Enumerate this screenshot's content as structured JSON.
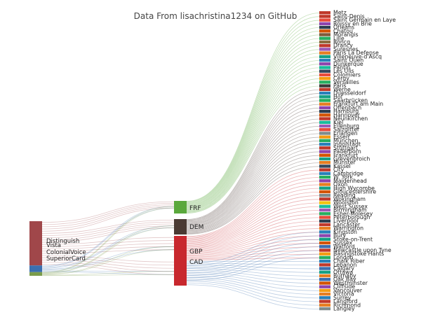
{
  "title": "Data From lisachristina1234 on GitHub",
  "sources": [
    {
      "name": "Distinguish",
      "color": "#a0474a",
      "weight": 60
    },
    {
      "name": "Vista",
      "color": "#a0474a",
      "weight": 0
    },
    {
      "name": "ColonialVoice",
      "color": "#3b6fb0",
      "weight": 9
    },
    {
      "name": "SuperiorCard",
      "color": "#7a9c4a",
      "weight": 5
    }
  ],
  "currencies": [
    {
      "name": "FRF",
      "color": "#5aa83c",
      "weight": 12
    },
    {
      "name": "DEM",
      "color": "#4a3a33",
      "weight": 13
    },
    {
      "name": "GBP",
      "color": "#c8282e",
      "weight": 30
    },
    {
      "name": "CAD",
      "color": "#c8282e",
      "weight": 45
    }
  ],
  "cities": [
    {
      "name": "Metz",
      "color": "#c0392b",
      "group": "FRF"
    },
    {
      "name": "Saint-Denis",
      "color": "#c0392b",
      "group": "FRF"
    },
    {
      "name": "Saint Germain en Laye",
      "color": "#e74c3c",
      "group": "FRF"
    },
    {
      "name": "Roissy en Brie",
      "color": "#8e44ad",
      "group": "FRF"
    },
    {
      "name": "Orleans",
      "color": "#2c3e50",
      "group": "FRF"
    },
    {
      "name": "Chatou",
      "color": "#d35400",
      "group": "FRF"
    },
    {
      "name": "Morangis",
      "color": "#7f5a3a",
      "group": "FRF"
    },
    {
      "name": "Lille",
      "color": "#27ae60",
      "group": "FRF"
    },
    {
      "name": "Roncq",
      "color": "#8c6d3f",
      "group": "FRF"
    },
    {
      "name": "Drancy",
      "color": "#c0392b",
      "group": "FRF"
    },
    {
      "name": "Suresnes",
      "color": "#9b59b6",
      "group": "FRF"
    },
    {
      "name": "Paris La Defense",
      "color": "#e67e22",
      "group": "FRF"
    },
    {
      "name": "Villeneuve-d'Ascq",
      "color": "#16a085",
      "group": "FRF"
    },
    {
      "name": "Saint Ouen",
      "color": "#2980b9",
      "group": "FRF"
    },
    {
      "name": "Dunkerque",
      "color": "#8e44ad",
      "group": "FRF"
    },
    {
      "name": "Pantin",
      "color": "#1abc9c",
      "group": "FRF"
    },
    {
      "name": "Les Ulis",
      "color": "#34495e",
      "group": "FRF"
    },
    {
      "name": "Colomiers",
      "color": "#e74c3c",
      "group": "FRF"
    },
    {
      "name": "Cergy",
      "color": "#f39c12",
      "group": "FRF"
    },
    {
      "name": "Versailles",
      "color": "#27ae60",
      "group": "FRF"
    },
    {
      "name": "Paris",
      "color": "#3a3a3a",
      "group": "FRF"
    },
    {
      "name": "Werne",
      "color": "#c0392b",
      "group": "DEM"
    },
    {
      "name": "Duesseldorf",
      "color": "#2980b9",
      "group": "DEM"
    },
    {
      "name": "Hof",
      "color": "#16a085",
      "group": "DEM"
    },
    {
      "name": "Saarbrücken",
      "color": "#27ae60",
      "group": "DEM"
    },
    {
      "name": "Frankfurt am Main",
      "color": "#e67e22",
      "group": "DEM"
    },
    {
      "name": "Offenbach",
      "color": "#8e44ad",
      "group": "DEM"
    },
    {
      "name": "Hamburg",
      "color": "#2c3e50",
      "group": "DEM"
    },
    {
      "name": "Hannover",
      "color": "#d35400",
      "group": "DEM"
    },
    {
      "name": "Neunkirchen",
      "color": "#c0392b",
      "group": "DEM"
    },
    {
      "name": "Kiel",
      "color": "#1abc9c",
      "group": "DEM"
    },
    {
      "name": "Eilenburg",
      "color": "#9b59b6",
      "group": "DEM"
    },
    {
      "name": "Salzgitter",
      "color": "#e74c3c",
      "group": "DEM"
    },
    {
      "name": "Erlangen",
      "color": "#7f8c8d",
      "group": "DEM"
    },
    {
      "name": "Essen",
      "color": "#f39c12",
      "group": "DEM"
    },
    {
      "name": "München",
      "color": "#27ae60",
      "group": "DEM"
    },
    {
      "name": "Ingolstadt",
      "color": "#2980b9",
      "group": "DEM"
    },
    {
      "name": "Stuttgart",
      "color": "#c0392b",
      "group": "DEM"
    },
    {
      "name": "Paderborn",
      "color": "#8e44ad",
      "group": "DEM"
    },
    {
      "name": "Frankfurt",
      "color": "#d35400",
      "group": "DEM"
    },
    {
      "name": "Grevenbroich",
      "color": "#16a085",
      "group": "DEM"
    },
    {
      "name": "Münster",
      "color": "#e67e22",
      "group": "DEM"
    },
    {
      "name": "Kassel",
      "color": "#34495e",
      "group": "DEM"
    },
    {
      "name": "City",
      "color": "#c0392b",
      "group": "GBP"
    },
    {
      "name": "Cambridge",
      "color": "#2980b9",
      "group": "GBP"
    },
    {
      "name": "W. York",
      "color": "#27ae60",
      "group": "GBP"
    },
    {
      "name": "Maidenhead",
      "color": "#8e44ad",
      "group": "GBP"
    },
    {
      "name": "Oxon",
      "color": "#e67e22",
      "group": "GBP"
    },
    {
      "name": "High Wycombe",
      "color": "#16a085",
      "group": "GBP"
    },
    {
      "name": "Gloucestershire",
      "color": "#d35400",
      "group": "GBP"
    },
    {
      "name": "Reading",
      "color": "#7f8c8d",
      "group": "GBP"
    },
    {
      "name": "Wokingham",
      "color": "#c0392b",
      "group": "GBP"
    },
    {
      "name": "Woolston",
      "color": "#f1c40f",
      "group": "GBP"
    },
    {
      "name": "West Sussex",
      "color": "#1abc9c",
      "group": "GBP"
    },
    {
      "name": "Birmingham",
      "color": "#9b59b6",
      "group": "GBP"
    },
    {
      "name": "Esher-Molesey",
      "color": "#27ae60",
      "group": "GBP"
    },
    {
      "name": "Peterborough",
      "color": "#e74c3c",
      "group": "GBP"
    },
    {
      "name": "Liverpool",
      "color": "#2c3e50",
      "group": "GBP"
    },
    {
      "name": "Lancaster",
      "color": "#c0392b",
      "group": "GBP"
    },
    {
      "name": "Warrington",
      "color": "#e67e22",
      "group": "GBP"
    },
    {
      "name": "Kingston",
      "color": "#2980b9",
      "group": "GBP"
    },
    {
      "name": "Bury",
      "color": "#8e44ad",
      "group": "GBP"
    },
    {
      "name": "Stoke-on-Trent",
      "color": "#16a085",
      "group": "GBP"
    },
    {
      "name": "Sussex",
      "color": "#d35400",
      "group": "GBP"
    },
    {
      "name": "Watford",
      "color": "#3b6fb0",
      "group": "GBP"
    },
    {
      "name": "Newcastle upon Tyne",
      "color": "#c0392b",
      "group": "GBP"
    },
    {
      "name": "Basingstoke Hants",
      "color": "#f39c12",
      "group": "GBP"
    },
    {
      "name": "London",
      "color": "#27ae60",
      "group": "GBP"
    },
    {
      "name": "Chalk Riber",
      "color": "#2980b9",
      "group": "CAD"
    },
    {
      "name": "Lebanon",
      "color": "#c0392b",
      "group": "CAD"
    },
    {
      "name": "Calgary",
      "color": "#3b6fb0",
      "group": "CAD"
    },
    {
      "name": "Ottawa",
      "color": "#16a085",
      "group": "CAD"
    },
    {
      "name": "Burnaby",
      "color": "#e67e22",
      "group": "CAD"
    },
    {
      "name": "Oak Bay",
      "color": "#3b6fb0",
      "group": "CAD"
    },
    {
      "name": "Westminster",
      "color": "#d35400",
      "group": "CAD"
    },
    {
      "name": "Cliffside",
      "color": "#8e44ad",
      "group": "CAD"
    },
    {
      "name": "Vancouver",
      "color": "#f39c12",
      "group": "CAD"
    },
    {
      "name": "Victoria",
      "color": "#e67e22",
      "group": "CAD"
    },
    {
      "name": "Surrey",
      "color": "#2980b9",
      "group": "CAD"
    },
    {
      "name": "Langford",
      "color": "#c0392b",
      "group": "CAD"
    },
    {
      "name": "Richmond",
      "color": "#e67e22",
      "group": "CAD"
    },
    {
      "name": "Langley",
      "color": "#7f8c8d",
      "group": "CAD"
    }
  ]
}
